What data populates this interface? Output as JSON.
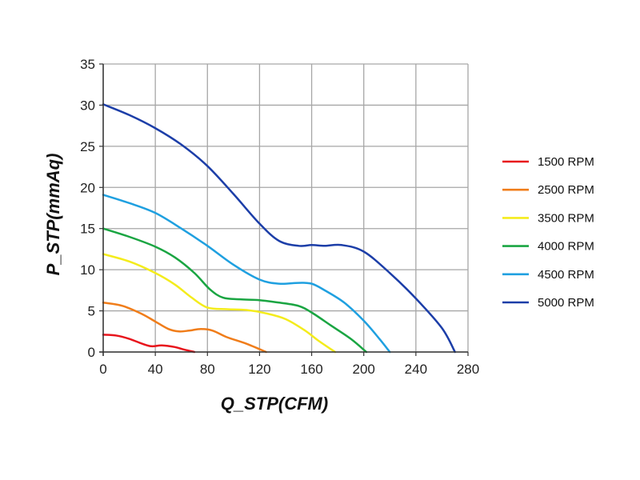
{
  "chart_data": {
    "type": "line",
    "xlabel": "Q_STP(CFM)",
    "ylabel": "P_STP(mmAq)",
    "xlim": [
      0,
      280
    ],
    "ylim": [
      0,
      35
    ],
    "xticks": [
      0,
      40,
      80,
      120,
      160,
      200,
      240,
      280
    ],
    "yticks": [
      0,
      5,
      10,
      15,
      20,
      25,
      30,
      35
    ],
    "grid": true,
    "legend_position": "right",
    "series": [
      {
        "name": "1500 RPM",
        "color": "#e8141c",
        "x": [
          0,
          10,
          20,
          30,
          37,
          45,
          55,
          62,
          70
        ],
        "y": [
          2.1,
          2.0,
          1.6,
          1.0,
          0.7,
          0.8,
          0.6,
          0.3,
          0.0
        ]
      },
      {
        "name": "2500 RPM",
        "color": "#f07d1a",
        "x": [
          0,
          15,
          30,
          40,
          50,
          58,
          66,
          75,
          84,
          95,
          110,
          125
        ],
        "y": [
          6.0,
          5.6,
          4.6,
          3.7,
          2.8,
          2.5,
          2.6,
          2.8,
          2.6,
          1.8,
          1.0,
          0.0
        ]
      },
      {
        "name": "3500 RPM",
        "color": "#f4ec1c",
        "x": [
          0,
          20,
          40,
          55,
          68,
          80,
          95,
          110,
          125,
          140,
          155,
          165,
          178
        ],
        "y": [
          11.9,
          11.0,
          9.6,
          8.2,
          6.6,
          5.4,
          5.2,
          5.1,
          4.7,
          4.0,
          2.6,
          1.4,
          0.0
        ]
      },
      {
        "name": "4000 RPM",
        "color": "#1aa542",
        "x": [
          0,
          20,
          40,
          55,
          70,
          82,
          92,
          105,
          120,
          135,
          150,
          160,
          175,
          190,
          202
        ],
        "y": [
          15.0,
          14.0,
          12.8,
          11.5,
          9.6,
          7.6,
          6.6,
          6.4,
          6.3,
          6.0,
          5.6,
          4.8,
          3.2,
          1.6,
          0.0
        ]
      },
      {
        "name": "4500 RPM",
        "color": "#1fa0e0",
        "x": [
          0,
          20,
          40,
          60,
          80,
          100,
          120,
          135,
          150,
          160,
          170,
          185,
          200,
          212,
          220
        ],
        "y": [
          19.1,
          18.1,
          16.9,
          15.0,
          12.9,
          10.6,
          8.8,
          8.3,
          8.4,
          8.3,
          7.5,
          6.0,
          3.8,
          1.6,
          0.0
        ]
      },
      {
        "name": "5000 RPM",
        "color": "#1c3ea8",
        "x": [
          0,
          20,
          40,
          60,
          80,
          100,
          120,
          135,
          150,
          160,
          170,
          183,
          200,
          220,
          240,
          260,
          270
        ],
        "y": [
          30.1,
          28.8,
          27.2,
          25.2,
          22.6,
          19.2,
          15.6,
          13.5,
          12.9,
          13.0,
          12.9,
          13.0,
          12.2,
          9.6,
          6.5,
          2.9,
          0.0
        ]
      }
    ]
  }
}
